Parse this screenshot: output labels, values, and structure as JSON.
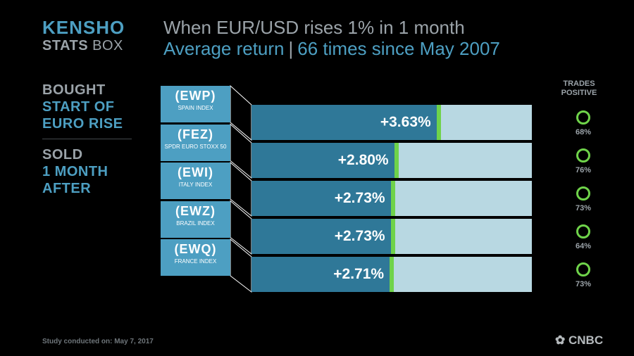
{
  "logo": {
    "line1": "KENSHO",
    "line2_bold": "STATS",
    "line2_thin": "BOX"
  },
  "title": "When EUR/USD rises 1% in 1 month",
  "subtitle_left": "Average return",
  "subtitle_sep": "|",
  "subtitle_right": "66 times since May 2007",
  "sidebar": {
    "bought": [
      "BOUGHT",
      "START OF",
      "EURO RISE"
    ],
    "sold": [
      "SOLD",
      "1 MONTH",
      "AFTER"
    ]
  },
  "trades_header": [
    "TRADES",
    "POSITIVE"
  ],
  "footer": "Study conducted on: May 7, 2017",
  "brand": "CNBC",
  "colors": {
    "accent": "#4d9fc2",
    "bar": "#2f7898",
    "bar_bg": "#b8d8e2",
    "positive": "#6fd34a"
  },
  "chart_data": {
    "type": "bar",
    "orientation": "horizontal",
    "title": "When EUR/USD rises 1% in 1 month",
    "subtitle": "Average return | 66 times since May 2007",
    "xlim": [
      0,
      5.5
    ],
    "categories": [
      {
        "ticker": "(EWP)",
        "name": "SPAIN INDEX"
      },
      {
        "ticker": "(FEZ)",
        "name": "SPDR EURO STOXX 50"
      },
      {
        "ticker": "(EWI)",
        "name": "ITALY INDEX"
      },
      {
        "ticker": "(EWZ)",
        "name": "BRAZIL INDEX"
      },
      {
        "ticker": "(EWQ)",
        "name": "FRANCE INDEX"
      }
    ],
    "values": [
      3.63,
      2.8,
      2.73,
      2.73,
      2.71
    ],
    "value_labels": [
      "+3.63%",
      "+2.80%",
      "+2.73%",
      "+2.73%",
      "+2.71%"
    ],
    "trades_positive": [
      "68%",
      "76%",
      "73%",
      "64%",
      "73%"
    ]
  }
}
